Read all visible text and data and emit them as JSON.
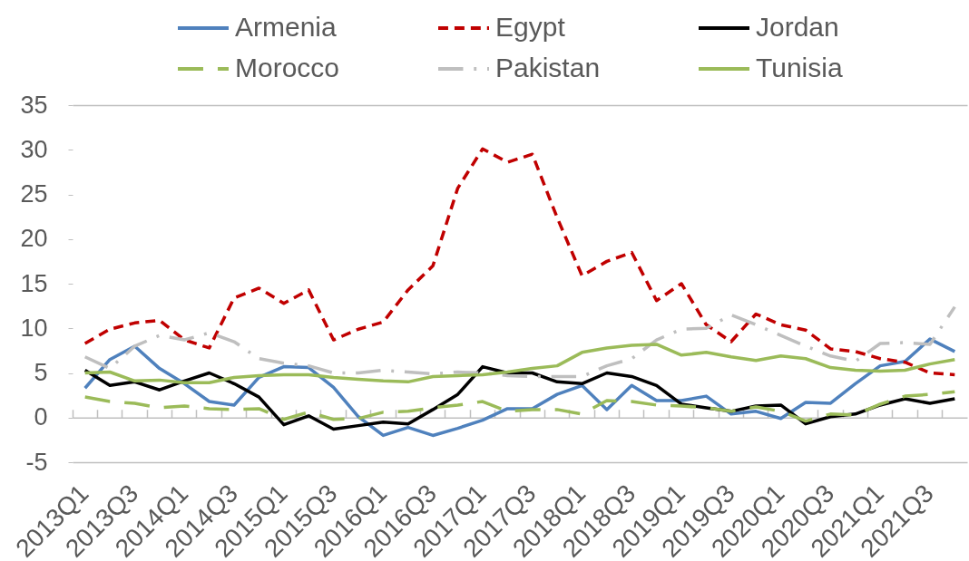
{
  "chart_data": {
    "type": "line",
    "categories": [
      "2013Q1",
      null,
      "2013Q3",
      null,
      "2014Q1",
      null,
      "2014Q3",
      null,
      "2015Q1",
      null,
      "2015Q3",
      null,
      "2016Q1",
      null,
      "2016Q3",
      null,
      "2017Q1",
      null,
      "2017Q3",
      null,
      "2018Q1",
      null,
      "2018Q3",
      null,
      "2019Q1",
      null,
      "2019Q3",
      null,
      "2020Q1",
      null,
      "2020Q3",
      null,
      "2021Q1",
      null,
      "2021Q3",
      null
    ],
    "series": [
      {
        "name": "Armenia",
        "color": "#4f81bd",
        "line_style": "solid",
        "values": [
          3.3,
          6.5,
          8.0,
          5.5,
          3.8,
          1.8,
          1.4,
          4.5,
          5.7,
          5.6,
          3.4,
          0.1,
          -2.0,
          -1.1,
          -2.0,
          -1.2,
          -0.3,
          1.0,
          1.0,
          2.6,
          3.6,
          0.9,
          3.6,
          1.9,
          1.9,
          2.4,
          0.4,
          0.7,
          -0.1,
          1.7,
          1.6,
          3.8,
          5.8,
          6.3,
          8.8,
          7.4
        ]
      },
      {
        "name": "Egypt",
        "color": "#c00000",
        "line_style": "dotted",
        "values": [
          8.3,
          9.9,
          10.6,
          10.9,
          8.7,
          7.8,
          13.4,
          14.5,
          12.8,
          14.3,
          8.7,
          9.9,
          10.7,
          14.3,
          17.0,
          25.7,
          30.1,
          28.6,
          29.5,
          22.4,
          15.9,
          17.5,
          18.5,
          13.1,
          15.0,
          10.4,
          8.5,
          11.6,
          10.4,
          9.8,
          7.7,
          7.4,
          6.6,
          6.2,
          5.0,
          4.8
        ]
      },
      {
        "name": "Jordan",
        "color": "#000000",
        "line_style": "solid",
        "values": [
          5.3,
          3.6,
          4.0,
          3.1,
          4.1,
          5.0,
          3.8,
          2.3,
          -0.8,
          0.2,
          -1.3,
          -0.9,
          -0.5,
          -0.7,
          0.9,
          2.6,
          5.7,
          5.0,
          5.0,
          4.0,
          3.8,
          5.0,
          4.6,
          3.6,
          1.5,
          1.1,
          0.7,
          1.3,
          1.4,
          -0.7,
          0.1,
          0.4,
          1.4,
          2.1,
          1.6,
          2.1
        ]
      },
      {
        "name": "Morocco",
        "color": "#9bbb59",
        "line_style": "dashed",
        "values": [
          2.3,
          1.8,
          1.6,
          1.1,
          1.3,
          1.0,
          0.9,
          1.0,
          -0.2,
          0.6,
          -0.2,
          -0.1,
          0.6,
          0.7,
          1.1,
          1.4,
          1.8,
          0.7,
          0.9,
          0.9,
          0.4,
          1.9,
          1.8,
          1.4,
          1.3,
          1.1,
          0.7,
          1.2,
          0.7,
          -0.4,
          0.4,
          0.3,
          1.5,
          2.4,
          2.6,
          2.9
        ]
      },
      {
        "name": "Pakistan",
        "color": "#bfbfbf",
        "line_style": "dashdot",
        "values": [
          6.8,
          5.5,
          8.0,
          9.2,
          8.7,
          9.5,
          8.5,
          6.6,
          6.1,
          5.8,
          5.0,
          5.0,
          5.3,
          5.1,
          4.9,
          5.1,
          5.0,
          4.7,
          4.6,
          4.6,
          4.6,
          5.8,
          6.6,
          8.7,
          9.9,
          10.0,
          11.5,
          10.4,
          9.2,
          8.0,
          6.9,
          6.3,
          8.3,
          8.4,
          8.2,
          12.4
        ]
      },
      {
        "name": "Tunisia",
        "color": "#9bbb59",
        "line_style": "solid",
        "values": [
          5.0,
          5.1,
          4.1,
          4.2,
          3.9,
          3.9,
          4.5,
          4.7,
          4.8,
          4.8,
          4.5,
          4.3,
          4.1,
          4.0,
          4.6,
          4.7,
          4.8,
          5.1,
          5.5,
          5.8,
          7.3,
          7.8,
          8.1,
          8.2,
          7.0,
          7.3,
          6.8,
          6.4,
          6.9,
          6.6,
          5.6,
          5.3,
          5.2,
          5.3,
          6.0,
          6.5
        ]
      }
    ],
    "ylim": [
      -5,
      35
    ],
    "yticks": [
      -5,
      0,
      5,
      10,
      15,
      20,
      25,
      30,
      35
    ],
    "legend": "top"
  }
}
